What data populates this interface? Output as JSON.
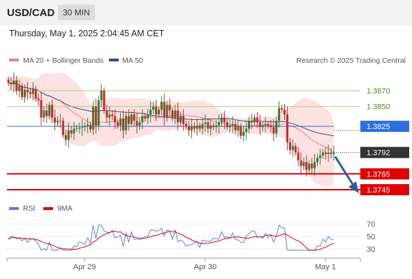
{
  "header": {
    "pair": "USD/CAD",
    "timeframe": "30 MIN"
  },
  "datetime": "Thursday, May 1, 2025 2:04:45 AM CET",
  "legend": {
    "ma20": {
      "label": "MA 20 + Bollinger Bands",
      "color": "#f08080"
    },
    "ma50": {
      "label": "MA 50",
      "color": "#2f4f8f"
    },
    "credit": "Research © 2025 Trading Central"
  },
  "colors": {
    "up": "#2e7d32",
    "down": "#c62828",
    "band": "#fde2e2",
    "resistance": "#a5d17a",
    "pivot": "#2e6fdc",
    "support": "#e00000",
    "arrow": "#2a5d9f",
    "rsi": "#5b7fd6",
    "rsi_ma": "#e00000"
  },
  "chart_data": [
    {
      "type": "candlestick",
      "x_ticks": [
        "Apr 29",
        "Apr 30",
        "May 1"
      ],
      "ylim": [
        1.3735,
        1.3905
      ],
      "levels": [
        {
          "value": 1.387,
          "label": "1.3870",
          "kind": "resistance"
        },
        {
          "value": 1.385,
          "label": "1.3850",
          "kind": "resistance"
        },
        {
          "value": 1.3825,
          "label": "1.3825",
          "kind": "pivot"
        },
        {
          "value": 1.3765,
          "label": "1.3765",
          "kind": "support"
        },
        {
          "value": 1.3745,
          "label": "1.3745",
          "kind": "support"
        }
      ],
      "last_price": {
        "value": 1.3792,
        "label": "1.3792"
      },
      "forecast_arrow": {
        "from": 1.3792,
        "to": 1.3752
      },
      "close": [
        1.388,
        1.3878,
        1.3883,
        1.387,
        1.3876,
        1.3862,
        1.3871,
        1.3868,
        1.3866,
        1.3872,
        1.386,
        1.3858,
        1.3836,
        1.3845,
        1.3838,
        1.3852,
        1.3836,
        1.383,
        1.3832,
        1.3832,
        1.3814,
        1.3808,
        1.382,
        1.3816,
        1.3822,
        1.3823,
        1.3823,
        1.3824,
        1.3825,
        1.3827,
        1.3821,
        1.385,
        1.3826,
        1.3858,
        1.387,
        1.3845,
        1.3836,
        1.384,
        1.3838,
        1.383,
        1.3826,
        1.3835,
        1.382,
        1.3838,
        1.3828,
        1.384,
        1.3832,
        1.3826,
        1.383,
        1.3838,
        1.3835,
        1.384,
        1.3846,
        1.385,
        1.384,
        1.3846,
        1.3856,
        1.3836,
        1.3852,
        1.3845,
        1.3835,
        1.3845,
        1.383,
        1.3838,
        1.3828,
        1.3825,
        1.382,
        1.3825,
        1.3822,
        1.3826,
        1.3822,
        1.3828,
        1.383,
        1.3822,
        1.3826,
        1.3824,
        1.3826,
        1.383,
        1.3836,
        1.383,
        1.3824,
        1.3826,
        1.3828,
        1.382,
        1.3825,
        1.3813,
        1.3818,
        1.3822,
        1.3832,
        1.383,
        1.3836,
        1.383,
        1.3824,
        1.3826,
        1.3828,
        1.3826,
        1.3824,
        1.3816,
        1.3832,
        1.3848,
        1.3846,
        1.384,
        1.3805,
        1.3795,
        1.38,
        1.3792,
        1.3782,
        1.3775,
        1.378,
        1.377,
        1.3778,
        1.3772,
        1.378,
        1.3785,
        1.3788,
        1.3792,
        1.379,
        1.3792,
        1.379,
        1.3792
      ]
    },
    {
      "type": "line",
      "title": "RSI",
      "series": [
        {
          "name": "RSI"
        },
        {
          "name": "9MA"
        }
      ],
      "y_ticks": [
        70,
        50,
        30
      ],
      "ylim": [
        20,
        80
      ]
    }
  ]
}
